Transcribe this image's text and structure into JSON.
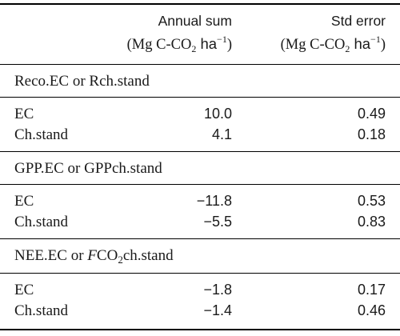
{
  "header": {
    "col1_title": "Annual sum",
    "col2_title": "Std error",
    "col1_units_prefix": "(Mg C-CO",
    "col1_units_sub": "2",
    "col1_units_ha": " ha",
    "col1_units_sup": "−1",
    "col1_units_suffix": ")",
    "col2_units_prefix": "(Mg C-CO",
    "col2_units_sub": "2",
    "col2_units_ha": " ha",
    "col2_units_sup": "−1",
    "col2_units_suffix": ")"
  },
  "groups": [
    {
      "title": "Reco.EC or Rch.stand",
      "rows": [
        {
          "label": "EC",
          "annual_sum": "10.0",
          "std_error": "0.49"
        },
        {
          "label": "Ch.stand",
          "annual_sum": "4.1",
          "std_error": "0.18"
        }
      ]
    },
    {
      "title": "GPP.EC or GPPch.stand",
      "rows": [
        {
          "label": "EC",
          "annual_sum": "−11.8",
          "std_error": "0.53"
        },
        {
          "label": "Ch.stand",
          "annual_sum": "−5.5",
          "std_error": "0.83"
        }
      ]
    },
    {
      "title_prefix": "NEE.EC or ",
      "title_italic": "F",
      "title_mid": "CO",
      "title_sub": "2",
      "title_suffix": "ch.stand",
      "rows": [
        {
          "label": "EC",
          "annual_sum": "−1.8",
          "std_error": "0.17"
        },
        {
          "label": "Ch.stand",
          "annual_sum": "−1.4",
          "std_error": "0.46"
        }
      ]
    }
  ]
}
